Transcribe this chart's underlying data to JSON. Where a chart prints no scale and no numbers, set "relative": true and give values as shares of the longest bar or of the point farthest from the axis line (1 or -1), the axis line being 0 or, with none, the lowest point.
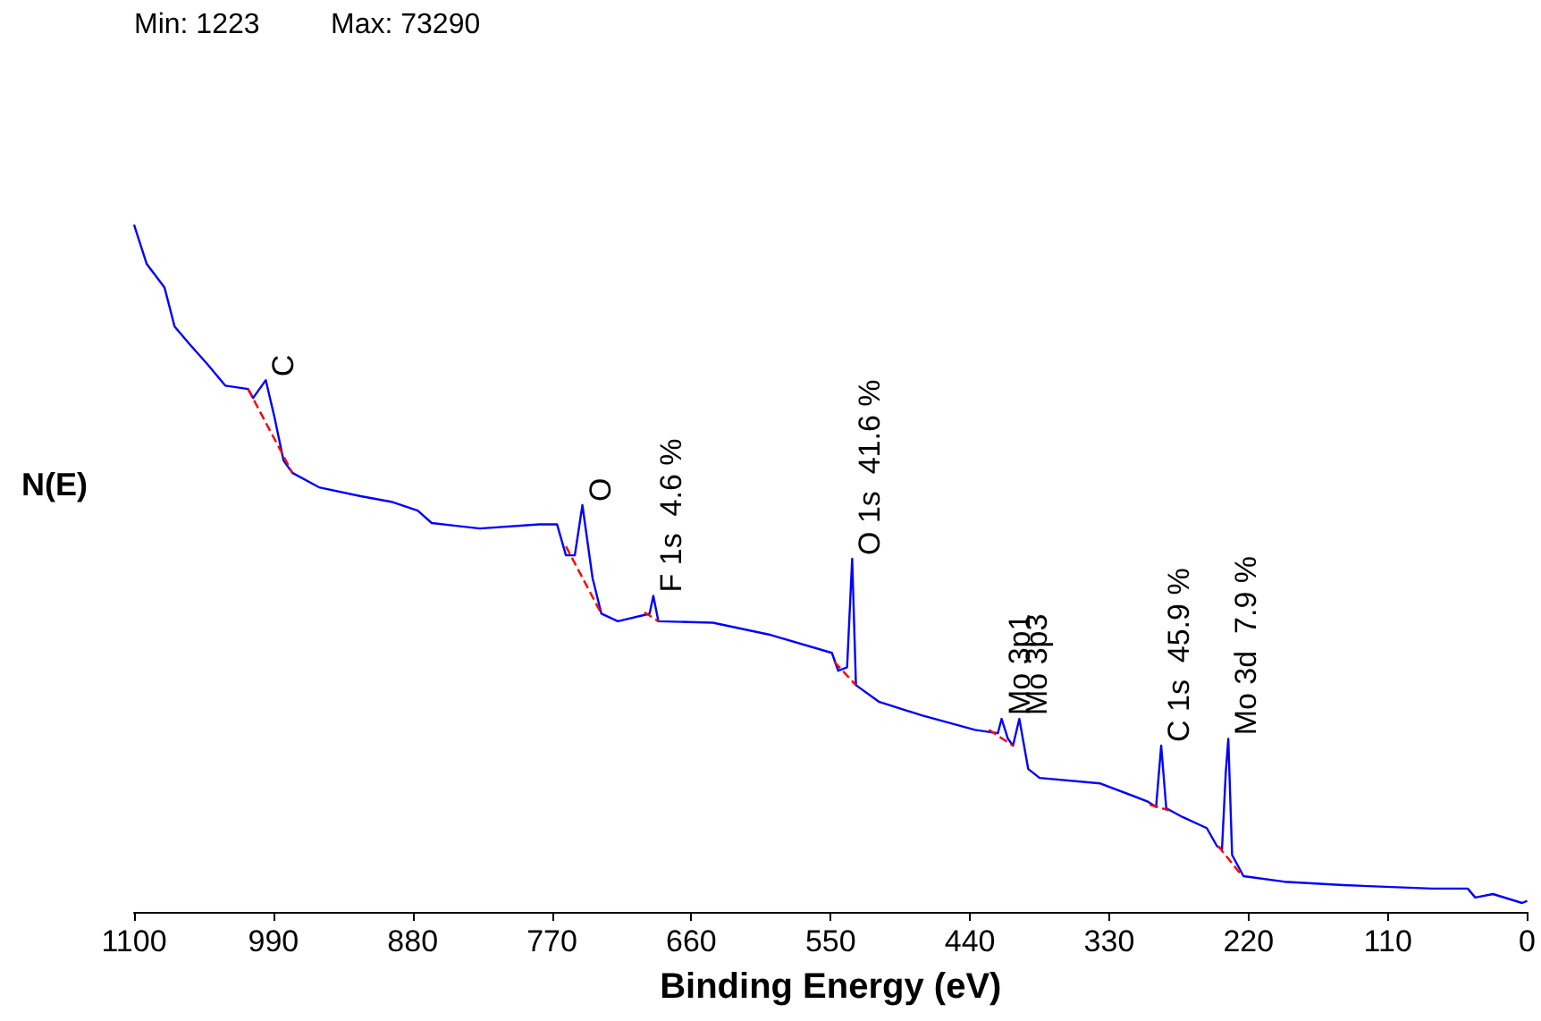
{
  "chart_data": {
    "type": "line",
    "relative": true,
    "xlabel": "Binding Energy (eV)",
    "ylabel": "N(E)",
    "xlim": [
      1100,
      0
    ],
    "xticks": [
      0,
      110,
      220,
      330,
      440,
      550,
      660,
      770,
      880,
      990,
      1100
    ],
    "grid": false,
    "marker": "none",
    "annotations": [
      "Min: 1223",
      "Max: 73290",
      {
        "text": "C",
        "x": 996,
        "y": 0.774
      },
      {
        "text": "O",
        "x": 746,
        "y": 0.592
      },
      {
        "text": "F 1s  4.6 %",
        "x": 690,
        "y": 0.46
      },
      {
        "text": "O 1s  41.6 %",
        "x": 533,
        "y": 0.514
      },
      {
        "text": "Mo 3p1",
        "x": 415,
        "y": 0.281
      },
      {
        "text": "Mo 3p3",
        "x": 401,
        "y": 0.281
      },
      {
        "text": "C 1s  45.9 %",
        "x": 289,
        "y": 0.242
      },
      {
        "text": "Mo 3d  7.9 %",
        "x": 236,
        "y": 0.252
      }
    ],
    "series": [
      {
        "color": "#0000ff",
        "line_style": "solid",
        "x": [
          1100,
          1090,
          1076,
          1068,
          1056,
          1042,
          1028,
          1010,
          1006,
          996,
          989,
          982,
          975,
          954,
          921,
          897,
          876,
          865,
          827,
          780,
          766,
          759,
          752,
          746,
          738,
          731,
          718,
          693,
          690,
          686,
          643,
          597,
          549,
          544,
          537,
          533,
          530,
          512,
          478,
          436,
          418,
          415,
          410,
          406,
          401,
          394,
          385,
          337,
          300,
          293,
          289,
          285,
          272,
          253,
          245,
          241,
          238,
          236,
          233,
          224,
          192,
          145,
          75,
          47,
          41,
          27,
          4,
          0
        ],
        "values": [
          1,
          0.943,
          0.909,
          0.852,
          0.826,
          0.797,
          0.766,
          0.761,
          0.748,
          0.774,
          0.719,
          0.657,
          0.639,
          0.618,
          0.605,
          0.597,
          0.584,
          0.566,
          0.558,
          0.564,
          0.564,
          0.519,
          0.519,
          0.592,
          0.486,
          0.434,
          0.423,
          0.434,
          0.46,
          0.423,
          0.421,
          0.403,
          0.377,
          0.351,
          0.356,
          0.514,
          0.33,
          0.306,
          0.286,
          0.265,
          0.26,
          0.281,
          0.252,
          0.242,
          0.281,
          0.208,
          0.195,
          0.187,
          0.161,
          0.153,
          0.242,
          0.151,
          0.138,
          0.122,
          0.096,
          0.091,
          0.203,
          0.252,
          0.083,
          0.052,
          0.044,
          0.039,
          0.034,
          0.034,
          0.021,
          0.026,
          0.013,
          0.016
        ]
      },
      {
        "color": "#ff0000",
        "line_style": "dashed",
        "x": [
          1010,
          975,
          900,
          759,
          731,
          710,
          697,
          686,
          600,
          547,
          530,
          480,
          425,
          406,
          350,
          298,
          283,
          260,
          244,
          227
        ],
        "values": [
          0.761,
          0.639,
          null,
          0.532,
          0.434,
          null,
          0.436,
          0.423,
          null,
          0.364,
          0.33,
          null,
          0.265,
          0.242,
          null,
          0.156,
          0.148,
          null,
          0.096,
          0.057
        ]
      }
    ]
  }
}
